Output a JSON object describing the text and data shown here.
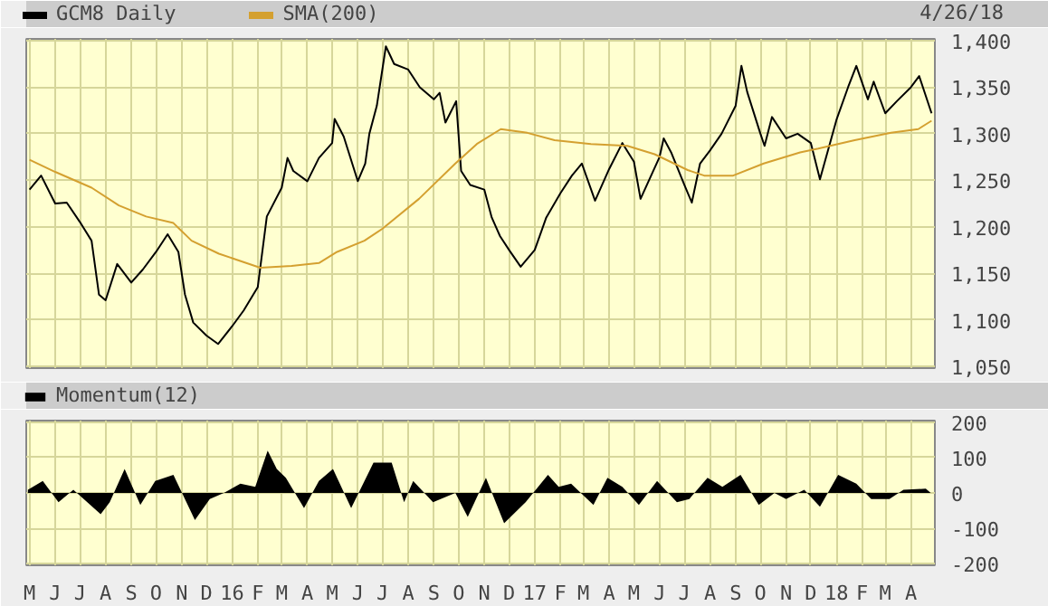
{
  "chart_data": [
    {
      "type": "line",
      "annotations": [
        "4/26/18"
      ],
      "legend": "top",
      "grid": true,
      "tick_labels": "y",
      "xlim": [
        "2015-04-27",
        "2018-04-30"
      ],
      "xticks": [
        {
          "value": "2015-05-01",
          "label": null
        },
        {
          "value": "2015-06-01",
          "label": null
        },
        {
          "value": "2015-07-01",
          "label": null
        },
        {
          "value": "2015-08-01",
          "label": null
        },
        {
          "value": "2015-09-01",
          "label": null
        },
        {
          "value": "2015-10-01",
          "label": null
        },
        {
          "value": "2015-11-01",
          "label": null
        },
        {
          "value": "2015-12-01",
          "label": null
        },
        {
          "value": "2016-01-01",
          "label": null
        },
        {
          "value": "2016-02-01",
          "label": null
        },
        {
          "value": "2016-03-01",
          "label": null
        },
        {
          "value": "2016-04-01",
          "label": null
        },
        {
          "value": "2016-05-01",
          "label": null
        },
        {
          "value": "2016-06-01",
          "label": null
        },
        {
          "value": "2016-07-01",
          "label": null
        },
        {
          "value": "2016-08-01",
          "label": null
        },
        {
          "value": "2016-09-01",
          "label": null
        },
        {
          "value": "2016-10-01",
          "label": null
        },
        {
          "value": "2016-11-01",
          "label": null
        },
        {
          "value": "2016-12-01",
          "label": null
        },
        {
          "value": "2017-01-01",
          "label": null
        },
        {
          "value": "2017-02-01",
          "label": null
        },
        {
          "value": "2017-03-01",
          "label": null
        },
        {
          "value": "2017-04-01",
          "label": null
        },
        {
          "value": "2017-05-01",
          "label": null
        },
        {
          "value": "2017-06-01",
          "label": null
        },
        {
          "value": "2017-07-01",
          "label": null
        },
        {
          "value": "2017-08-01",
          "label": null
        },
        {
          "value": "2017-09-01",
          "label": null
        },
        {
          "value": "2017-10-01",
          "label": null
        },
        {
          "value": "2017-11-01",
          "label": null
        },
        {
          "value": "2017-12-01",
          "label": null
        },
        {
          "value": "2018-01-01",
          "label": null
        },
        {
          "value": "2018-02-01",
          "label": null
        },
        {
          "value": "2018-03-01",
          "label": null
        },
        {
          "value": "2018-04-01",
          "label": null
        }
      ],
      "ylim": [
        1048,
        1402
      ],
      "yticks": [
        {
          "value": 1050,
          "label": "1,050"
        },
        {
          "value": 1100,
          "label": "1,100"
        },
        {
          "value": 1150,
          "label": "1,150"
        },
        {
          "value": 1200,
          "label": "1,200"
        },
        {
          "value": 1250,
          "label": "1,250"
        },
        {
          "value": 1300,
          "label": "1,300"
        },
        {
          "value": 1350,
          "label": "1,350"
        },
        {
          "value": 1400,
          "label": "1,400"
        }
      ],
      "series": [
        {
          "name": "GCM8 Daily",
          "color": "#000000",
          "x": [
            "2015-05-01",
            "2015-05-15",
            "2015-06-01",
            "2015-06-15",
            "2015-07-01",
            "2015-07-15",
            "2015-07-24",
            "2015-08-01",
            "2015-08-15",
            "2015-09-01",
            "2015-09-15",
            "2015-10-01",
            "2015-10-15",
            "2015-10-28",
            "2015-11-05",
            "2015-11-15",
            "2015-12-01",
            "2015-12-15",
            "2016-01-01",
            "2016-01-15",
            "2016-02-01",
            "2016-02-12",
            "2016-03-01",
            "2016-03-08",
            "2016-03-15",
            "2016-04-01",
            "2016-04-15",
            "2016-05-01",
            "2016-05-04",
            "2016-05-15",
            "2016-06-01",
            "2016-06-10",
            "2016-06-15",
            "2016-06-24",
            "2016-07-05",
            "2016-07-15",
            "2016-08-01",
            "2016-08-15",
            "2016-09-01",
            "2016-09-08",
            "2016-09-15",
            "2016-09-28",
            "2016-10-04",
            "2016-10-15",
            "2016-11-01",
            "2016-11-10",
            "2016-11-20",
            "2016-12-01",
            "2016-12-15",
            "2017-01-01",
            "2017-01-15",
            "2017-02-01",
            "2017-02-15",
            "2017-02-27",
            "2017-03-15",
            "2017-04-01",
            "2017-04-17",
            "2017-05-01",
            "2017-05-09",
            "2017-06-01",
            "2017-06-06",
            "2017-06-15",
            "2017-07-01",
            "2017-07-10",
            "2017-07-20",
            "2017-08-01",
            "2017-08-15",
            "2017-09-01",
            "2017-09-08",
            "2017-09-15",
            "2017-10-01",
            "2017-10-06",
            "2017-10-15",
            "2017-11-01",
            "2017-11-15",
            "2017-12-01",
            "2017-12-12",
            "2018-01-01",
            "2018-01-15",
            "2018-01-25",
            "2018-02-08",
            "2018-02-15",
            "2018-03-01",
            "2018-03-15",
            "2018-04-01",
            "2018-04-11",
            "2018-04-26"
          ],
          "values": [
            1240,
            1255,
            1225,
            1226,
            1205,
            1185,
            1127,
            1121,
            1160,
            1140,
            1154,
            1173,
            1192,
            1173,
            1127,
            1097,
            1083,
            1074,
            1093,
            1110,
            1135,
            1211,
            1242,
            1274,
            1260,
            1249,
            1274,
            1290,
            1316,
            1297,
            1249,
            1268,
            1300,
            1330,
            1394,
            1375,
            1369,
            1350,
            1337,
            1344,
            1312,
            1335,
            1260,
            1245,
            1240,
            1210,
            1190,
            1175,
            1157,
            1175,
            1210,
            1236,
            1255,
            1268,
            1228,
            1262,
            1290,
            1270,
            1230,
            1275,
            1295,
            1280,
            1245,
            1226,
            1268,
            1282,
            1300,
            1330,
            1373,
            1345,
            1300,
            1287,
            1318,
            1295,
            1300,
            1290,
            1251,
            1315,
            1350,
            1373,
            1337,
            1356,
            1322,
            1335,
            1350,
            1362,
            1322
          ]
        },
        {
          "name": "SMA(200)",
          "color": "#d4a030",
          "x": [
            "2015-05-01",
            "2015-06-01",
            "2015-07-15",
            "2015-08-17",
            "2015-09-19",
            "2015-10-22",
            "2015-11-13",
            "2015-12-16",
            "2016-02-04",
            "2016-03-13",
            "2016-04-15",
            "2016-05-07",
            "2016-06-09",
            "2016-07-01",
            "2016-08-14",
            "2016-09-27",
            "2016-10-23",
            "2016-11-21",
            "2016-12-23",
            "2017-01-25",
            "2017-03-10",
            "2017-04-23",
            "2017-05-26",
            "2017-07-05",
            "2017-07-25",
            "2017-08-29",
            "2017-10-05",
            "2017-11-18",
            "2017-12-10",
            "2018-01-23",
            "2018-03-08",
            "2018-04-10",
            "2018-04-26"
          ],
          "values": [
            1272,
            1259,
            1242,
            1223,
            1211,
            1204,
            1185,
            1171,
            1156,
            1158,
            1161,
            1173,
            1185,
            1198,
            1230,
            1268,
            1289,
            1305,
            1301,
            1293,
            1289,
            1287,
            1278,
            1261,
            1255,
            1255,
            1268,
            1280,
            1284,
            1293,
            1301,
            1305,
            1314
          ]
        }
      ]
    },
    {
      "type": "area",
      "legend": "top",
      "grid": true,
      "xlim": [
        "2015-04-27",
        "2018-04-30"
      ],
      "xticks": [
        {
          "value": "2015-05-01",
          "label": "M"
        },
        {
          "value": "2015-06-01",
          "label": "J"
        },
        {
          "value": "2015-07-01",
          "label": "J"
        },
        {
          "value": "2015-08-01",
          "label": "A"
        },
        {
          "value": "2015-09-01",
          "label": "S"
        },
        {
          "value": "2015-10-01",
          "label": "O"
        },
        {
          "value": "2015-11-01",
          "label": "N"
        },
        {
          "value": "2015-12-01",
          "label": "D"
        },
        {
          "value": "2016-01-01",
          "label": "16"
        },
        {
          "value": "2016-02-01",
          "label": "F"
        },
        {
          "value": "2016-03-01",
          "label": "M"
        },
        {
          "value": "2016-04-01",
          "label": "A"
        },
        {
          "value": "2016-05-01",
          "label": "M"
        },
        {
          "value": "2016-06-01",
          "label": "J"
        },
        {
          "value": "2016-07-01",
          "label": "J"
        },
        {
          "value": "2016-08-01",
          "label": "A"
        },
        {
          "value": "2016-09-01",
          "label": "S"
        },
        {
          "value": "2016-10-01",
          "label": "O"
        },
        {
          "value": "2016-11-01",
          "label": "N"
        },
        {
          "value": "2016-12-01",
          "label": "D"
        },
        {
          "value": "2017-01-01",
          "label": "17"
        },
        {
          "value": "2017-02-01",
          "label": "F"
        },
        {
          "value": "2017-03-01",
          "label": "M"
        },
        {
          "value": "2017-04-01",
          "label": "A"
        },
        {
          "value": "2017-05-01",
          "label": "M"
        },
        {
          "value": "2017-06-01",
          "label": "J"
        },
        {
          "value": "2017-07-01",
          "label": "J"
        },
        {
          "value": "2017-08-01",
          "label": "A"
        },
        {
          "value": "2017-09-01",
          "label": "S"
        },
        {
          "value": "2017-10-01",
          "label": "O"
        },
        {
          "value": "2017-11-01",
          "label": "N"
        },
        {
          "value": "2017-12-01",
          "label": "D"
        },
        {
          "value": "2018-01-01",
          "label": "18"
        },
        {
          "value": "2018-02-01",
          "label": "F"
        },
        {
          "value": "2018-03-01",
          "label": "M"
        },
        {
          "value": "2018-04-01",
          "label": "A"
        }
      ],
      "ylim": [
        -205,
        205
      ],
      "yticks": [
        -200,
        -100,
        0,
        100,
        200
      ],
      "series": [
        {
          "name": "Momentum(12)",
          "color": "#000000",
          "x": [
            "2015-04-29",
            "2015-05-17",
            "2015-06-05",
            "2015-06-23",
            "2015-07-26",
            "2015-08-06",
            "2015-08-24",
            "2015-09-12",
            "2015-09-30",
            "2015-10-22",
            "2015-11-17",
            "2015-12-05",
            "2015-12-22",
            "2016-01-11",
            "2016-01-29",
            "2016-02-13",
            "2016-02-24",
            "2016-03-06",
            "2016-03-28",
            "2016-04-15",
            "2016-05-02",
            "2016-05-24",
            "2016-06-20",
            "2016-07-12",
            "2016-07-27",
            "2016-08-07",
            "2016-08-31",
            "2016-09-27",
            "2016-10-12",
            "2016-11-03",
            "2016-11-25",
            "2016-12-21",
            "2017-01-17",
            "2017-01-30",
            "2017-02-14",
            "2017-03-13",
            "2017-03-30",
            "2017-04-17",
            "2017-05-07",
            "2017-05-29",
            "2017-06-22",
            "2017-07-07",
            "2017-07-29",
            "2017-08-16",
            "2017-09-07",
            "2017-09-29",
            "2017-10-18",
            "2017-11-01",
            "2017-11-23",
            "2017-12-12",
            "2018-01-03",
            "2018-01-25",
            "2018-02-12",
            "2018-03-06",
            "2018-03-23",
            "2018-04-19",
            "2018-04-25"
          ],
          "values": [
            9,
            34,
            -26,
            9,
            -60,
            -26,
            68,
            -34,
            34,
            51,
            -77,
            -17,
            0,
            26,
            17,
            120,
            68,
            43,
            -43,
            34,
            68,
            -43,
            86,
            86,
            -26,
            34,
            -26,
            0,
            -68,
            43,
            -86,
            -26,
            51,
            17,
            26,
            -34,
            43,
            17,
            -34,
            34,
            -26,
            -17,
            43,
            17,
            51,
            -34,
            0,
            -17,
            9,
            -39,
            51,
            26,
            -17,
            -17,
            9,
            12,
            0
          ]
        }
      ]
    }
  ]
}
